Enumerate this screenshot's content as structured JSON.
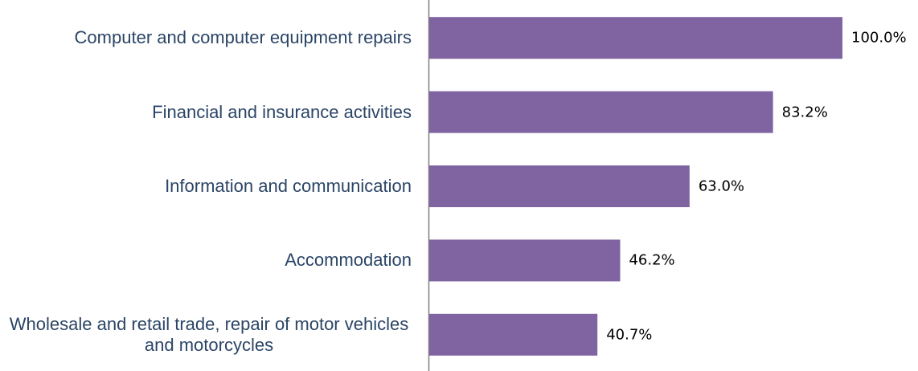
{
  "chart_data": {
    "type": "bar",
    "orientation": "horizontal",
    "categories": [
      "Computer and computer equipment repairs",
      "Financial and insurance activities",
      "Information and communication",
      "Accommodation",
      "Wholesale and retail trade, repair of motor vehicles and motorcycles"
    ],
    "values": [
      100.0,
      83.2,
      63.0,
      46.2,
      40.7
    ],
    "value_labels": [
      "100.0%",
      "83.2%",
      "63.0%",
      "46.2%",
      "40.7%"
    ],
    "color": "#8064a2",
    "xlim": [
      0,
      100
    ]
  }
}
